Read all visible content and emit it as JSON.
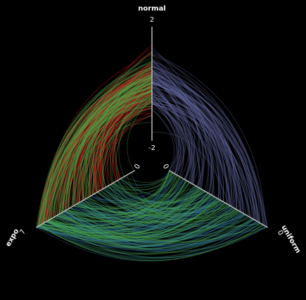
{
  "chart_data": {
    "type": "hive",
    "axes": [
      {
        "name": "normal",
        "ticks": [
          "2",
          "-2"
        ],
        "range": [
          -2,
          2
        ]
      },
      {
        "name": "uniform",
        "ticks": [
          "0",
          "0"
        ],
        "range": [
          0,
          1
        ]
      },
      {
        "name": "expo",
        "ticks": [
          "7",
          "0"
        ],
        "range": [
          0,
          7
        ]
      }
    ],
    "link_groups": [
      {
        "between": [
          "normal",
          "uniform"
        ],
        "color": "#6b6fa8"
      },
      {
        "between": [
          "normal",
          "expo"
        ],
        "color": "#e41a1c"
      },
      {
        "between": [
          "expo",
          "normal"
        ],
        "color": "#4daf4a"
      },
      {
        "between": [
          "uniform",
          "expo"
        ],
        "color": "#377eb8"
      },
      {
        "between": [
          "expo",
          "uniform"
        ],
        "color": "#4daf4a"
      }
    ],
    "background": "#000000",
    "axis_color": "#bbbbbb"
  }
}
